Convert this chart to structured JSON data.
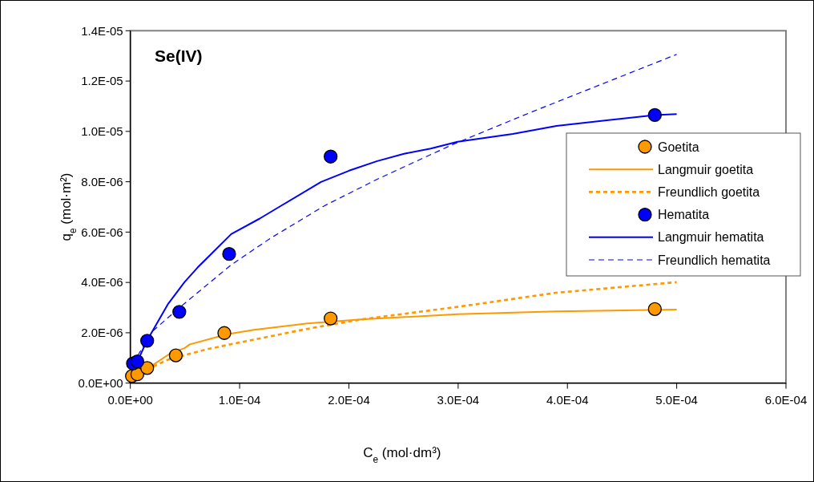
{
  "chart_data": {
    "type": "scatter",
    "title": "Se(IV)",
    "xlabel": "C$_{e}$ (mol·dm³)",
    "ylabel": "q$_{e}$ (mol·m²)",
    "xlim": [
      0,
      0.0006
    ],
    "ylim": [
      0,
      1.4e-05
    ],
    "xticks": [
      {
        "value": 0,
        "label": "0.0E+00"
      },
      {
        "value": 0.0001,
        "label": "1.0E-04"
      },
      {
        "value": 0.0002,
        "label": "2.0E-04"
      },
      {
        "value": 0.0003,
        "label": "3.0E-04"
      },
      {
        "value": 0.0004,
        "label": "4.0E-04"
      },
      {
        "value": 0.0005,
        "label": "5.0E-04"
      },
      {
        "value": 0.0006,
        "label": "6.0E-04"
      }
    ],
    "yticks": [
      {
        "value": 0,
        "label": "0.0E+00"
      },
      {
        "value": 2e-06,
        "label": "2.0E-06"
      },
      {
        "value": 4e-06,
        "label": "4.0E-06"
      },
      {
        "value": 6e-06,
        "label": "6.0E-06"
      },
      {
        "value": 8e-06,
        "label": "8.0E-06"
      },
      {
        "value": 1e-05,
        "label": "1.0E-05"
      },
      {
        "value": 1.2e-05,
        "label": "1.2E-05"
      },
      {
        "value": 1.4e-05,
        "label": "1.4E-05"
      }
    ],
    "grid": false,
    "legend": "right",
    "series": [
      {
        "name": "Goetita",
        "type": "scatter",
        "marker": "circle",
        "color": "#ff9900",
        "x": [
          1.5e-06,
          6.4e-06,
          1.54e-05,
          4.16e-05,
          8.6e-05,
          0.0001833,
          0.00048
        ],
        "values": [
          2.8e-07,
          3.5e-07,
          6e-07,
          1.1e-06,
          1.99e-06,
          2.57e-06,
          2.94e-06
        ]
      },
      {
        "name": "Langmuir goetita",
        "type": "line",
        "line_style": "solid",
        "color": "#ff9900",
        "x": [
          1.5e-06,
          1.51e-05,
          3.72e-05,
          4.95e-05,
          5.44e-05,
          8.87e-05,
          0.0001132,
          0.0001622,
          0.0002113,
          0.0002995,
          0.00039,
          0.0005
        ],
        "values": [
          2.8e-07,
          5.6e-07,
          1.2e-06,
          1.39e-06,
          1.54e-06,
          1.94e-06,
          2.12e-06,
          2.37e-06,
          2.53e-06,
          2.74e-06,
          2.85e-06,
          2.92e-06
        ]
      },
      {
        "name": "Freundlich goetita",
        "type": "line",
        "line_style": "dotted",
        "color": "#ff9900",
        "x": [
          1.51e-05,
          3.5e-05,
          7.15e-05,
          0.0001132,
          0.0001622,
          0.0002113,
          0.0002995,
          0.00039,
          0.0005
        ],
        "values": [
          5.5e-07,
          9.4e-07,
          1.36e-06,
          1.73e-06,
          2.16e-06,
          2.53e-06,
          3.03e-06,
          3.59e-06,
          4.01e-06
        ]
      },
      {
        "name": "Hematita",
        "type": "scatter",
        "marker": "circle",
        "color": "#0000ff",
        "x": [
          2.4e-06,
          6.4e-06,
          1.54e-05,
          4.48e-05,
          9.04e-05,
          0.0001833,
          0.00048
        ],
        "values": [
          7.8e-07,
          8.6e-07,
          1.68e-06,
          2.83e-06,
          5.13e-06,
          9e-06,
          1.065e-05
        ]
      },
      {
        "name": "Langmuir hematita",
        "type": "line",
        "line_style": "solid",
        "color": "#0000ff",
        "x": [
          2.4e-06,
          9e-06,
          1.51e-05,
          3.43e-05,
          4.95e-05,
          6.17e-05,
          9.23e-05,
          0.0001181,
          0.0001377,
          0.0001745,
          0.0002002,
          0.0002259,
          0.0002504,
          0.0002749,
          0.0002995,
          0.00035,
          0.00039,
          0.00048,
          0.0005
        ],
        "values": [
          7.8e-07,
          1.1e-06,
          1.68e-06,
          3.13e-06,
          4.01e-06,
          4.6e-06,
          5.92e-06,
          6.53e-06,
          7.04e-06,
          7.99e-06,
          8.44e-06,
          8.82e-06,
          9.11e-06,
          9.32e-06,
          9.59e-06,
          9.9e-06,
          1.022e-05,
          1.065e-05,
          1.069e-05
        ]
      },
      {
        "name": "Freundlich hematita",
        "type": "line",
        "line_style": "dashed",
        "color": "#0000ff",
        "x": [
          2.4e-06,
          2e-05,
          4.5e-05,
          9.23e-05,
          0.0001284,
          0.0001774,
          0.0002259,
          0.000295,
          0.000366,
          0.0005
        ],
        "values": [
          7.8e-07,
          2.05e-06,
          3e-06,
          4.7e-06,
          5.76e-06,
          7.04e-06,
          8.1e-06,
          9.48e-06,
          1.075e-05,
          1.306e-05
        ]
      }
    ]
  }
}
